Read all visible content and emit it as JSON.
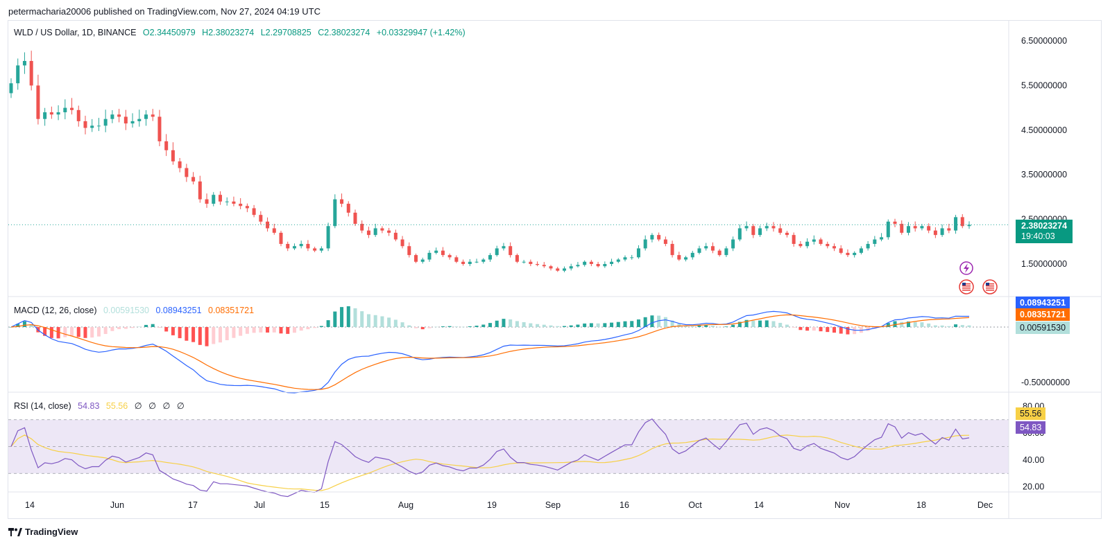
{
  "header": {
    "publisher_line": "petermacharia20006 published on TradingView.com, Nov 27, 2024 04:19 UTC"
  },
  "legend": {
    "symbol": "WLD / US Dollar, 1D, BINANCE",
    "open": "O2.34450979",
    "high": "H2.38023274",
    "low": "L2.29708825",
    "close": "C2.38023274",
    "change": "+0.03329947 (+1.42%)"
  },
  "price_pill": {
    "value": "2.38023274",
    "countdown": "19:40:03"
  },
  "macd_legend": {
    "name": "MACD (12, 26, close)",
    "histogram": "0.00591530",
    "macd": "0.08943251",
    "signal": "0.08351721"
  },
  "rsi_legend": {
    "name": "RSI (14, close)",
    "rsi": "54.83",
    "rsi_ma": "55.56",
    "extras": [
      "∅",
      "∅",
      "∅",
      "∅"
    ]
  },
  "footer": {
    "brand": "TradingView"
  },
  "colors": {
    "up": "#26a69a",
    "down": "#ef5350",
    "macd_line": "#2962ff",
    "signal_line": "#ff6d00",
    "rsi_line": "#7e57c2",
    "rsi_ma": "#f7d046",
    "hist_up_strong": "#26a69a",
    "hist_up_weak": "#b2dfdb",
    "hist_down_strong": "#ff5252",
    "hist_down_weak": "#ffcdd2",
    "rsi_band": "#ede7f6"
  },
  "icons": [
    "lightning-event-icon",
    "us-flag-event-icon",
    "us-flag-event-icon"
  ],
  "chart_data": {
    "type": "candlestick",
    "symbol": "WLD / US Dollar",
    "interval": "1D",
    "y_axis_ticks": [
      "6.50000000",
      "5.50000000",
      "4.50000000",
      "3.50000000",
      "2.50000000",
      "1.50000000"
    ],
    "y_axis_values": [
      6.5,
      5.5,
      4.5,
      3.5,
      2.5,
      1.5
    ],
    "x_axis_ticks": [
      "14",
      "Jun",
      "17",
      "Jul",
      "15",
      "Aug",
      "19",
      "Sep",
      "16",
      "Oct",
      "14",
      "Nov",
      "18",
      "Dec"
    ],
    "last_price": 2.38023274,
    "closes": [
      5.55,
      5.95,
      6.05,
      5.5,
      4.75,
      4.9,
      4.85,
      4.9,
      5.0,
      4.95,
      4.7,
      4.55,
      4.6,
      4.6,
      4.75,
      4.85,
      4.8,
      4.65,
      4.7,
      4.75,
      4.85,
      4.8,
      4.25,
      4.05,
      3.8,
      3.65,
      3.45,
      3.35,
      2.95,
      2.85,
      3.05,
      2.9,
      2.9,
      2.85,
      2.8,
      2.75,
      2.6,
      2.45,
      2.3,
      2.2,
      1.95,
      1.85,
      1.9,
      1.95,
      1.85,
      1.8,
      1.85,
      2.35,
      2.95,
      2.85,
      2.65,
      2.4,
      2.25,
      2.15,
      2.3,
      2.25,
      2.2,
      2.05,
      1.9,
      1.7,
      1.55,
      1.6,
      1.75,
      1.8,
      1.7,
      1.65,
      1.55,
      1.5,
      1.55,
      1.55,
      1.6,
      1.7,
      1.85,
      1.9,
      1.7,
      1.55,
      1.55,
      1.5,
      1.48,
      1.45,
      1.4,
      1.35,
      1.4,
      1.45,
      1.48,
      1.55,
      1.5,
      1.45,
      1.5,
      1.55,
      1.6,
      1.65,
      1.65,
      1.85,
      2.05,
      2.15,
      2.05,
      1.95,
      1.7,
      1.6,
      1.65,
      1.75,
      1.85,
      1.9,
      1.8,
      1.7,
      1.85,
      2.05,
      2.3,
      2.35,
      2.15,
      2.3,
      2.35,
      2.3,
      2.2,
      2.15,
      1.95,
      1.9,
      2.0,
      2.05,
      1.95,
      1.9,
      1.85,
      1.75,
      1.7,
      1.75,
      1.85,
      1.95,
      2.05,
      2.1,
      2.45,
      2.4,
      2.2,
      2.35,
      2.3,
      2.35,
      2.25,
      2.15,
      2.3,
      2.25,
      2.55,
      2.35,
      2.38
    ],
    "macd_axis_ticks": [
      "-0.50000000"
    ],
    "macd": 0.08943251,
    "signal": 0.08351721,
    "histogram": 0.0059153,
    "rsi_axis_ticks": [
      "80.00",
      "60.00",
      "40.00",
      "20.00"
    ],
    "rsi_levels": [
      70,
      50,
      30
    ],
    "rsi": 54.83,
    "rsi_ma": 55.56,
    "grid": false
  }
}
